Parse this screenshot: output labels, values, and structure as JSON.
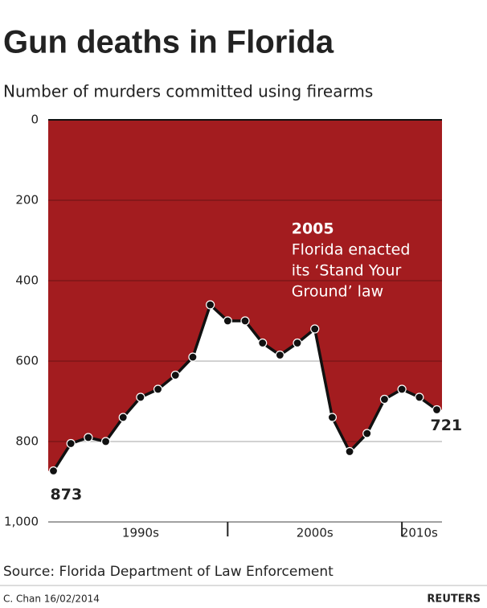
{
  "chart_data": {
    "type": "area-line",
    "title": "Gun deaths in Florida",
    "subtitle": "Number of murders committed using firearms",
    "x": [
      1990,
      1991,
      1992,
      1993,
      1994,
      1995,
      1996,
      1997,
      1998,
      1999,
      2000,
      2001,
      2002,
      2003,
      2004,
      2005,
      2006,
      2007,
      2008,
      2009,
      2010,
      2011,
      2012
    ],
    "values": [
      873,
      805,
      790,
      800,
      740,
      690,
      670,
      635,
      590,
      460,
      500,
      500,
      555,
      585,
      555,
      520,
      740,
      825,
      780,
      695,
      670,
      690,
      721
    ],
    "color": "#a31c1f",
    "line_color": "#111111",
    "xlim": [
      1989.7,
      2012.3
    ],
    "xticks": [
      2000,
      2010
    ],
    "decade_labels": [
      {
        "value": 1995,
        "label": "1990s"
      },
      {
        "value": 2005,
        "label": "2000s"
      },
      {
        "value": 2011,
        "label": "2010s"
      }
    ],
    "ylim": [
      0,
      1000
    ],
    "y_inverted": true,
    "yticks": [
      0,
      200,
      400,
      600,
      800,
      {
        "value": 1000,
        "label": "1,000"
      }
    ],
    "grid": true,
    "annotation": {
      "x": 2005,
      "year": "2005",
      "lines": [
        "Florida enacted",
        "its ‘Stand Your",
        "Ground’ law"
      ]
    },
    "source": "Source: Florida Department of Law Enforcement",
    "credit": "C. Chan  16/02/2014",
    "brand": "REUTERS"
  }
}
